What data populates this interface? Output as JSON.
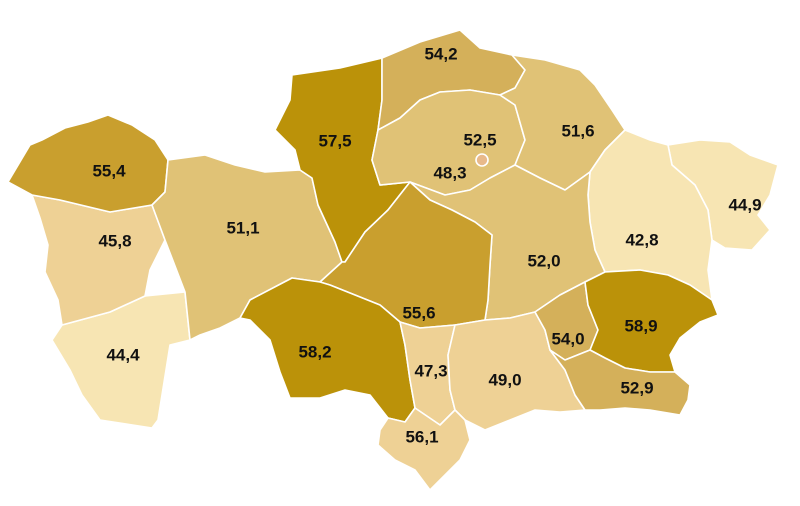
{
  "colors": {
    "very_light": "#f7e5b3",
    "light": "#eed195",
    "medium_light": "#e0c276",
    "medium": "#d4b05a",
    "medium_dark": "#c99f2e",
    "dark": "#bb9209",
    "city": "#e8b98a"
  },
  "regions": [
    {
      "id": "west-kazakhstan",
      "label": "55,4",
      "tone": "medium_dark"
    },
    {
      "id": "atyrau",
      "label": "45,8",
      "tone": "light"
    },
    {
      "id": "mangystau",
      "label": "44,4",
      "tone": "very_light"
    },
    {
      "id": "aktobe",
      "label": "51,1",
      "tone": "medium_light"
    },
    {
      "id": "kostanay",
      "label": "57,5",
      "tone": "dark"
    },
    {
      "id": "north-kazakhstan",
      "label": "54,2",
      "tone": "medium"
    },
    {
      "id": "akmola",
      "label": "48,3",
      "tone": "medium_light"
    },
    {
      "id": "astana-city",
      "label": "52,5",
      "tone": "city"
    },
    {
      "id": "pavlodar",
      "label": "51,6",
      "tone": "medium_light"
    },
    {
      "id": "east-kazakhstan",
      "label": "44,9",
      "tone": "very_light"
    },
    {
      "id": "abai",
      "label": "42,8",
      "tone": "very_light"
    },
    {
      "id": "karaganda",
      "label": "52,0",
      "tone": "medium_light"
    },
    {
      "id": "ulytau",
      "label": "55,6",
      "tone": "medium_dark"
    },
    {
      "id": "kyzylorda",
      "label": "58,2",
      "tone": "dark"
    },
    {
      "id": "turkistan",
      "label": "47,3",
      "tone": "light"
    },
    {
      "id": "zhambyl",
      "label": "49,0",
      "tone": "light"
    },
    {
      "id": "shymkent-area",
      "label": "56,1",
      "tone": "light"
    },
    {
      "id": "zhetisu",
      "label": "58,9",
      "tone": "dark"
    },
    {
      "id": "almaty-city-area",
      "label": "54,0",
      "tone": "medium"
    },
    {
      "id": "almaty-region",
      "label": "52,9",
      "tone": "medium"
    }
  ]
}
